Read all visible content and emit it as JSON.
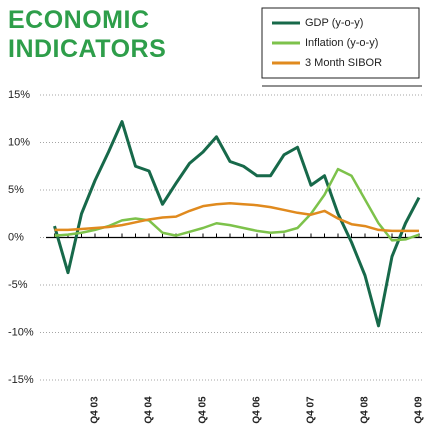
{
  "chart_data": {
    "type": "line",
    "title": "ECONOMIC INDICATORS",
    "categories": [
      null,
      null,
      null,
      "Q4 03",
      null,
      null,
      null,
      "Q4 04",
      null,
      null,
      null,
      "Q4 05",
      null,
      null,
      null,
      "Q4 06",
      null,
      null,
      null,
      "Q4 07",
      null,
      null,
      null,
      "Q4 08",
      null,
      null,
      null,
      "Q4 09"
    ],
    "series": [
      {
        "name": "GDP (y-o-y)",
        "color": "#17694a",
        "values": [
          1.2,
          -3.7,
          2.5,
          6,
          9,
          12.2,
          7.5,
          7,
          3.5,
          5.7,
          7.8,
          9,
          10.6,
          8,
          7.5,
          6.5,
          6.5,
          8.7,
          9.5,
          5.5,
          6.5,
          2.5,
          -0.5,
          -4,
          -9.3,
          -2,
          1.5,
          4.2
        ]
      },
      {
        "name": "Inflation (y-o-y)",
        "color": "#7dc24b",
        "values": [
          0.2,
          0.3,
          0.5,
          0.8,
          1.2,
          1.8,
          2.0,
          1.8,
          0.5,
          0.2,
          0.6,
          1.0,
          1.5,
          1.3,
          1.0,
          0.7,
          0.5,
          0.6,
          1.0,
          2.5,
          4.5,
          7.2,
          6.5,
          4,
          1.5,
          -0.3,
          -0.2,
          0.3
        ]
      },
      {
        "name": "3 Month SIBOR",
        "color": "#e08a1e",
        "values": [
          0.8,
          0.8,
          0.9,
          1.0,
          1.1,
          1.3,
          1.6,
          1.9,
          2.1,
          2.2,
          2.8,
          3.3,
          3.5,
          3.6,
          3.5,
          3.4,
          3.2,
          2.9,
          2.6,
          2.4,
          2.8,
          2.0,
          1.4,
          1.2,
          0.8,
          0.7,
          0.7,
          0.7
        ]
      }
    ],
    "ylim": [
      -15,
      15
    ],
    "yticks": [
      {
        "value": 15,
        "label": "15%"
      },
      {
        "value": 10,
        "label": "10%"
      },
      {
        "value": 5,
        "label": "5%"
      },
      {
        "value": 0,
        "label": "0%"
      },
      {
        "value": -5,
        "label": "-5%"
      },
      {
        "value": -10,
        "label": "-10%"
      },
      {
        "value": -15,
        "label": "-15%"
      }
    ],
    "grid": true,
    "legend": "top-right"
  }
}
